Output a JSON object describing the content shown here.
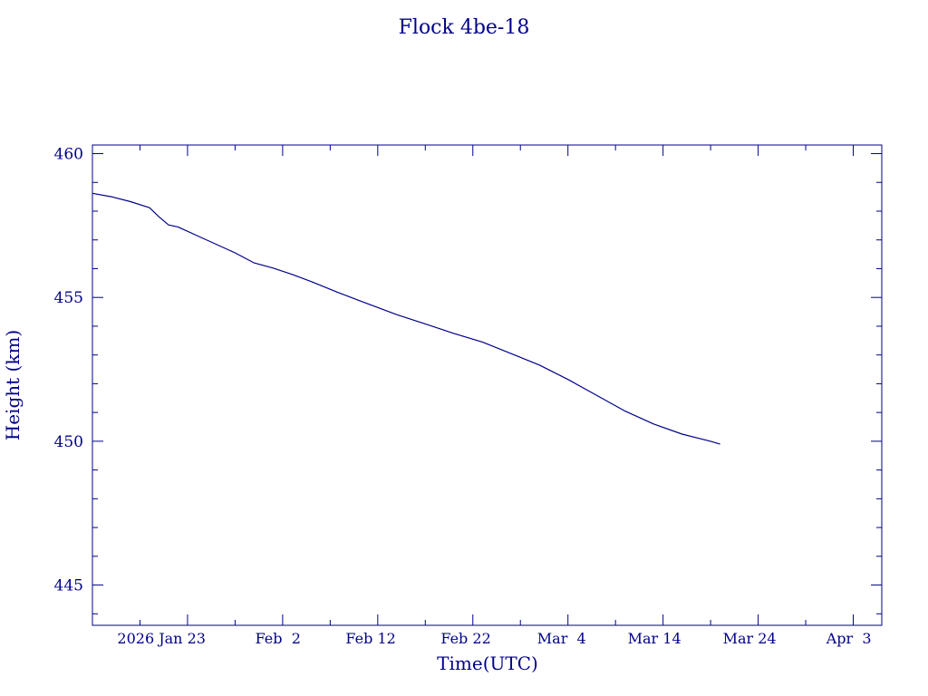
{
  "chart_data": {
    "type": "line",
    "title": "Flock 4be-18",
    "xlabel": "Time(UTC)",
    "ylabel": "Height (km)",
    "ylim": [
      443.6,
      460.3
    ],
    "xlim": [
      "2026-01-13",
      "2026-04-06"
    ],
    "yticks": [
      445,
      450,
      455,
      460
    ],
    "xticks": [
      {
        "date": "2026-01-23",
        "label": "2026 Jan 23"
      },
      {
        "date": "2026-02-02",
        "label": "Feb  2"
      },
      {
        "date": "2026-02-12",
        "label": "Feb 12"
      },
      {
        "date": "2026-02-22",
        "label": "Feb 22"
      },
      {
        "date": "2026-03-04",
        "label": "Mar  4"
      },
      {
        "date": "2026-03-14",
        "label": "Mar 14"
      },
      {
        "date": "2026-03-24",
        "label": "Mar 24"
      },
      {
        "date": "2026-04-03",
        "label": "Apr  3"
      }
    ],
    "grid": false,
    "color": "#00008b",
    "series": [
      {
        "x": [
          "2026-01-13",
          "2026-01-15",
          "2026-01-17",
          "2026-01-19",
          "2026-01-20",
          "2026-01-21",
          "2026-01-22",
          "2026-01-24",
          "2026-01-26",
          "2026-01-28",
          "2026-01-30",
          "2026-02-01",
          "2026-02-03",
          "2026-02-05",
          "2026-02-08",
          "2026-02-10",
          "2026-02-12",
          "2026-02-14",
          "2026-02-17",
          "2026-02-20",
          "2026-02-23",
          "2026-02-26",
          "2026-03-01",
          "2026-03-04",
          "2026-03-07",
          "2026-03-10",
          "2026-03-13",
          "2026-03-16",
          "2026-03-19",
          "2026-03-20"
        ],
        "y": [
          458.62,
          458.5,
          458.33,
          458.12,
          457.8,
          457.52,
          457.45,
          457.15,
          456.85,
          456.55,
          456.2,
          456.02,
          455.8,
          455.55,
          455.15,
          454.9,
          454.65,
          454.4,
          454.08,
          453.75,
          453.45,
          453.05,
          452.65,
          452.15,
          451.6,
          451.05,
          450.6,
          450.25,
          450.0,
          449.9
        ]
      }
    ]
  }
}
